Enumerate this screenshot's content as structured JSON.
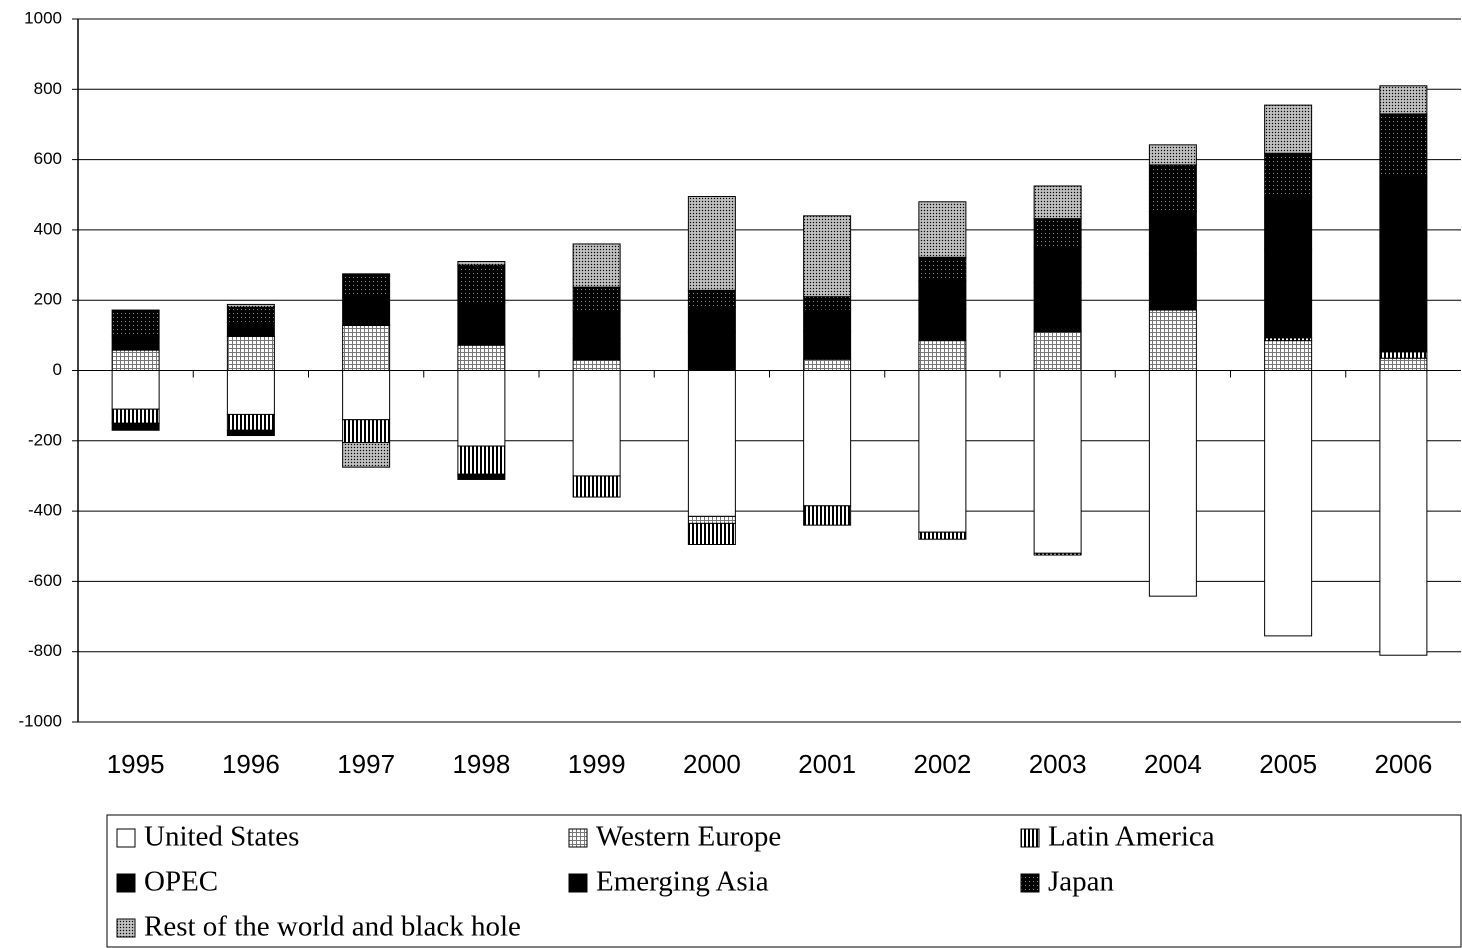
{
  "chart_data": {
    "type": "stacked-bar",
    "categories": [
      "1995",
      "1996",
      "1997",
      "1998",
      "1999",
      "2000",
      "2001",
      "2002",
      "2003",
      "2004",
      "2005",
      "2006"
    ],
    "ylim": [
      -1000,
      1000
    ],
    "yticks": [
      -1000,
      -800,
      -600,
      -400,
      -200,
      0,
      200,
      400,
      600,
      800,
      1000
    ],
    "grid": true,
    "series": [
      {
        "name": "United States",
        "color": "#ffffff",
        "pattern": "plain",
        "values": [
          -110,
          -125,
          -140,
          -215,
          -300,
          -415,
          -385,
          -460,
          -520,
          -642,
          -755,
          -810
        ]
      },
      {
        "name": "Western Europe",
        "color": "#bfbfbf",
        "pattern": "fine-grid",
        "values": [
          58,
          97,
          128,
          72,
          30,
          -20,
          32,
          85,
          110,
          172,
          85,
          35
        ]
      },
      {
        "name": "Latin America",
        "color": "#808080",
        "pattern": "vertical-stripes",
        "values": [
          -40,
          -45,
          -65,
          -80,
          -60,
          -60,
          -55,
          -20,
          -5,
          0,
          8,
          18
        ]
      },
      {
        "name": "OPEC",
        "color": "#000000",
        "pattern": "solid",
        "values": [
          -20,
          -15,
          0,
          -15,
          60,
          110,
          80,
          90,
          140,
          160,
          250,
          330
        ]
      },
      {
        "name": "Emerging Asia",
        "color": "#000000",
        "pattern": "solid",
        "values": [
          40,
          40,
          80,
          120,
          80,
          70,
          60,
          80,
          100,
          120,
          150,
          170
        ]
      },
      {
        "name": "Japan",
        "color": "#1a1a1a",
        "pattern": "dark-dots",
        "values": [
          74,
          43,
          67,
          108,
          67,
          48,
          38,
          67,
          82,
          133,
          125,
          177
        ]
      },
      {
        "name": "Rest of the world and black hole",
        "color": "#8c8c8c",
        "pattern": "grey-dots",
        "values": [
          0,
          8,
          -70,
          10,
          123,
          267,
          230,
          158,
          93,
          57,
          137,
          80
        ]
      }
    ]
  }
}
